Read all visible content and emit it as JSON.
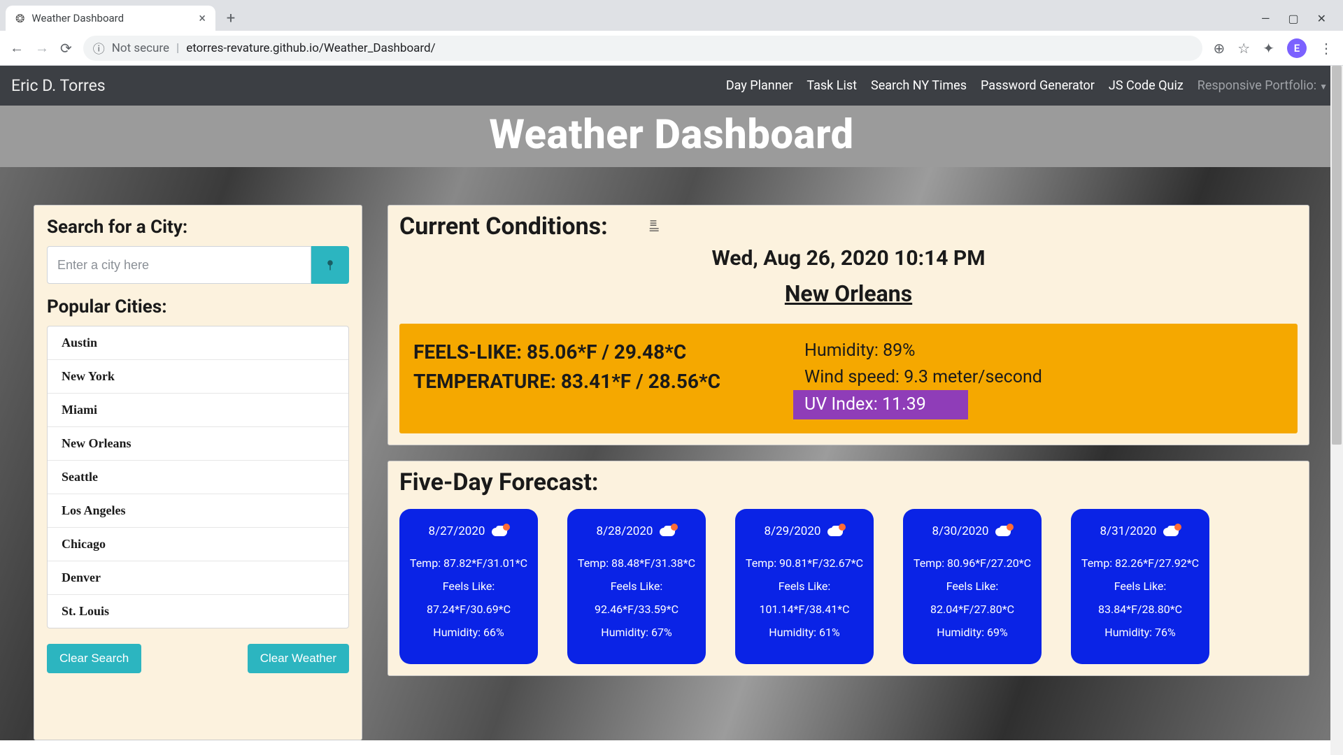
{
  "browser": {
    "tab_title": "Weather Dashboard",
    "not_secure": "Not secure",
    "url": "etorres-revature.github.io/Weather_Dashboard/",
    "profile_letter": "E"
  },
  "navbar": {
    "brand": "Eric D. Torres",
    "links": [
      "Day Planner",
      "Task List",
      "Search NY Times",
      "Password Generator",
      "JS Code Quiz"
    ],
    "dropdown": "Responsive Portfolio:"
  },
  "hero": "Weather Dashboard",
  "sidebar": {
    "search_label": "Search for a City:",
    "search_placeholder": "Enter a city here",
    "popular_label": "Popular Cities:",
    "cities": [
      "Austin",
      "New York",
      "Miami",
      "New Orleans",
      "Seattle",
      "Los Angeles",
      "Chicago",
      "Denver",
      "St. Louis"
    ],
    "clear_search": "Clear Search",
    "clear_weather": "Clear Weather"
  },
  "current": {
    "title": "Current Conditions:",
    "datetime": "Wed, Aug 26, 2020 10:14 PM",
    "city": "New Orleans",
    "feels_like": "FEELS-LIKE: 85.06*F / 29.48*C",
    "temperature": "TEMPERATURE: 83.41*F / 28.56*C",
    "humidity": "Humidity: 89%",
    "wind": "Wind speed: 9.3 meter/second",
    "uv": "UV Index: 11.39",
    "metrics_bg": "#f5a800",
    "uv_bg": "#8f3db8"
  },
  "forecast": {
    "title": "Five-Day Forecast:",
    "card_bg": "#0a23e6",
    "days": [
      {
        "date": "8/27/2020",
        "temp": "Temp: 87.82*F/31.01*C",
        "feels_label": "Feels Like:",
        "feels": "87.24*F/30.69*C",
        "humidity": "Humidity: 66%"
      },
      {
        "date": "8/28/2020",
        "temp": "Temp: 88.48*F/31.38*C",
        "feels_label": "Feels Like:",
        "feels": "92.46*F/33.59*C",
        "humidity": "Humidity: 67%"
      },
      {
        "date": "8/29/2020",
        "temp": "Temp: 90.81*F/32.67*C",
        "feels_label": "Feels Like:",
        "feels": "101.14*F/38.41*C",
        "humidity": "Humidity: 61%"
      },
      {
        "date": "8/30/2020",
        "temp": "Temp: 80.96*F/27.20*C",
        "feels_label": "Feels Like:",
        "feels": "82.04*F/27.80*C",
        "humidity": "Humidity: 69%"
      },
      {
        "date": "8/31/2020",
        "temp": "Temp: 82.26*F/27.92*C",
        "feels_label": "Feels Like:",
        "feels": "83.84*F/28.80*C",
        "humidity": "Humidity: 76%"
      }
    ]
  }
}
